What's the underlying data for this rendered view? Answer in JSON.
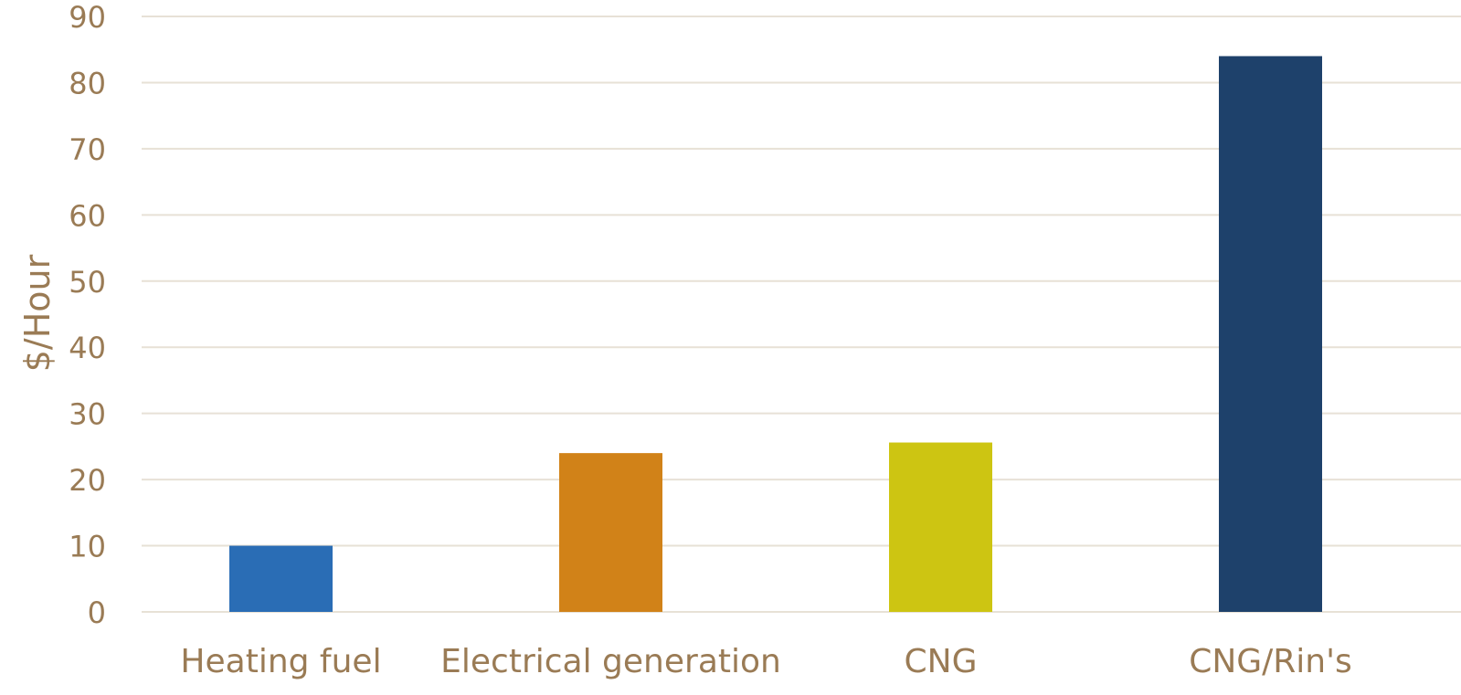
{
  "chart_data": {
    "type": "bar",
    "categories": [
      "Heating fuel",
      "Electrical generation",
      "CNG",
      "CNG/Rin's"
    ],
    "values": [
      10,
      24,
      25.6,
      84
    ],
    "colors": [
      "#2a6db5",
      "#d18218",
      "#cdc512",
      "#1e416b"
    ],
    "ylabel": "$/Hour",
    "xlabel": "",
    "ylim": [
      0,
      90
    ],
    "yticks": [
      0,
      10,
      20,
      30,
      40,
      50,
      60,
      70,
      80,
      90
    ],
    "grid": true,
    "legend": "none",
    "text_color": "#9a7b55",
    "grid_color": "#e7e1d6"
  }
}
